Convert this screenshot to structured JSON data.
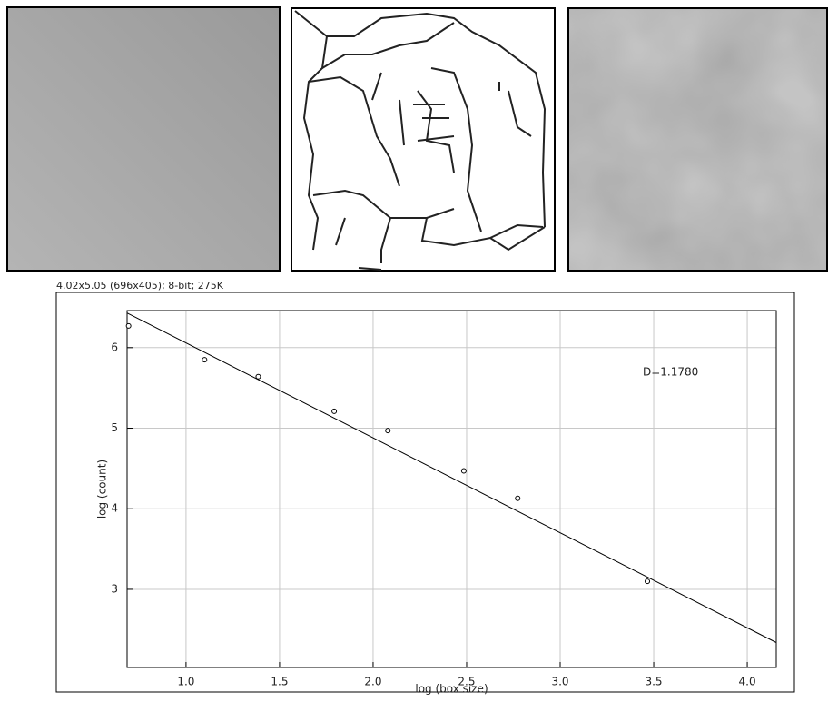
{
  "status_text": "4.02x5.05  (696x405); 8-bit; 275K",
  "chart_data": {
    "type": "scatter",
    "xlabel": "log (box size)",
    "ylabel": "log (count)",
    "annotation": "D=1.1780",
    "x": [
      0.693,
      1.099,
      1.386,
      1.792,
      2.079,
      2.485,
      2.773,
      3.466
    ],
    "values": [
      6.27,
      5.85,
      5.64,
      5.21,
      4.97,
      4.47,
      4.13,
      3.1
    ],
    "fit": {
      "x": [
        0.685,
        4.155
      ],
      "values": [
        6.43,
        2.34
      ]
    },
    "xlim": [
      0.685,
      4.155
    ],
    "ylim": [
      2.03,
      6.46
    ],
    "xticks": [
      {
        "value": 1,
        "label": "1.0"
      },
      {
        "value": 1.5,
        "label": "1.5"
      },
      {
        "value": 2,
        "label": "2.0"
      },
      {
        "value": 2.5,
        "label": "2.5"
      },
      {
        "value": 3,
        "label": "3.0"
      },
      {
        "value": 3.5,
        "label": "3.5"
      },
      {
        "value": 4,
        "label": "4.0"
      }
    ],
    "yticks": [
      3,
      4,
      5,
      6
    ],
    "grid": true,
    "color": "#000000"
  }
}
